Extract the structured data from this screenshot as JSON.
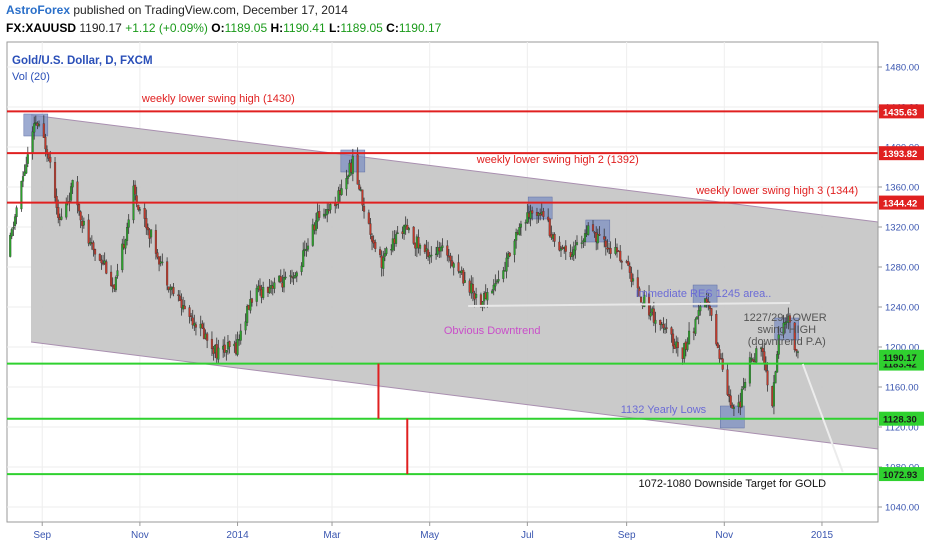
{
  "header": {
    "author": "AstroForex",
    "published": "published on TradingView.com, December 17, 2014",
    "symbol": "FX:XAUUSD",
    "last": "1190.17",
    "change": "+1.12 (+0.09%)",
    "o_label": "O:",
    "o_value": "1189.05",
    "h_label": "H:",
    "h_value": "1190.41",
    "l_label": "L:",
    "l_value": "1189.05",
    "c_label": "C:",
    "c_value": "1190.17"
  },
  "chart_data": {
    "type": "candlestick",
    "title": "Gold/U.S. Dollar, D, FXCM",
    "indicator": "Vol (20)",
    "ylim": [
      1025,
      1505
    ],
    "yticks": [
      1040,
      1080,
      1120,
      1160,
      1200,
      1240,
      1280,
      1320,
      1360,
      1400,
      1440,
      1480
    ],
    "ytick_labels": [
      "1040.00",
      "1080.00",
      "1120.00",
      "1160.00",
      "1200.00",
      "1240.00",
      "1280.00",
      "1320.00",
      "1360.00",
      "1400.00",
      "1440.00",
      "1480.00"
    ],
    "xticks": [
      {
        "label": "Sep",
        "date": "2013-09-01"
      },
      {
        "label": "Nov",
        "date": "2013-11-01"
      },
      {
        "label": "2014",
        "date": "2014-01-01"
      },
      {
        "label": "Mar",
        "date": "2014-03-01"
      },
      {
        "label": "May",
        "date": "2014-05-01"
      },
      {
        "label": "Jul",
        "date": "2014-07-01"
      },
      {
        "label": "Sep",
        "date": "2014-09-01"
      },
      {
        "label": "Nov",
        "date": "2014-11-01"
      },
      {
        "label": "2015",
        "date": "2015-01-01"
      }
    ],
    "xlim": [
      "2013-08-10",
      "2015-02-05"
    ],
    "price_path": [
      {
        "date": "2013-08-10",
        "price": 1290
      },
      {
        "date": "2013-08-20",
        "price": 1370
      },
      {
        "date": "2013-08-28",
        "price": 1425
      },
      {
        "date": "2013-09-05",
        "price": 1395
      },
      {
        "date": "2013-09-12",
        "price": 1325
      },
      {
        "date": "2013-09-20",
        "price": 1360
      },
      {
        "date": "2013-10-01",
        "price": 1300
      },
      {
        "date": "2013-10-10",
        "price": 1285
      },
      {
        "date": "2013-10-16",
        "price": 1255
      },
      {
        "date": "2013-10-28",
        "price": 1355
      },
      {
        "date": "2013-11-07",
        "price": 1315
      },
      {
        "date": "2013-11-20",
        "price": 1260
      },
      {
        "date": "2013-11-28",
        "price": 1240
      },
      {
        "date": "2013-12-06",
        "price": 1225
      },
      {
        "date": "2013-12-19",
        "price": 1195
      },
      {
        "date": "2013-12-31",
        "price": 1200
      },
      {
        "date": "2014-01-10",
        "price": 1250
      },
      {
        "date": "2014-01-24",
        "price": 1265
      },
      {
        "date": "2014-02-05",
        "price": 1265
      },
      {
        "date": "2014-02-20",
        "price": 1330
      },
      {
        "date": "2014-03-03",
        "price": 1345
      },
      {
        "date": "2014-03-14",
        "price": 1385
      },
      {
        "date": "2014-03-24",
        "price": 1320
      },
      {
        "date": "2014-04-01",
        "price": 1285
      },
      {
        "date": "2014-04-14",
        "price": 1320
      },
      {
        "date": "2014-04-28",
        "price": 1295
      },
      {
        "date": "2014-05-12",
        "price": 1295
      },
      {
        "date": "2014-05-26",
        "price": 1260
      },
      {
        "date": "2014-06-02",
        "price": 1245
      },
      {
        "date": "2014-06-16",
        "price": 1275
      },
      {
        "date": "2014-06-25",
        "price": 1320
      },
      {
        "date": "2014-07-10",
        "price": 1340
      },
      {
        "date": "2014-07-18",
        "price": 1305
      },
      {
        "date": "2014-07-28",
        "price": 1295
      },
      {
        "date": "2014-08-08",
        "price": 1315
      },
      {
        "date": "2014-08-20",
        "price": 1300
      },
      {
        "date": "2014-08-29",
        "price": 1290
      },
      {
        "date": "2014-09-10",
        "price": 1250
      },
      {
        "date": "2014-09-25",
        "price": 1215
      },
      {
        "date": "2014-10-06",
        "price": 1195
      },
      {
        "date": "2014-10-21",
        "price": 1248
      },
      {
        "date": "2014-11-05",
        "price": 1145
      },
      {
        "date": "2014-11-10",
        "price": 1140
      },
      {
        "date": "2014-11-18",
        "price": 1190
      },
      {
        "date": "2014-11-24",
        "price": 1198
      },
      {
        "date": "2014-12-01",
        "price": 1145
      },
      {
        "date": "2014-12-05",
        "price": 1208
      },
      {
        "date": "2014-12-09",
        "price": 1230
      },
      {
        "date": "2014-12-12",
        "price": 1222
      },
      {
        "date": "2014-12-17",
        "price": 1190
      }
    ],
    "levels": [
      {
        "value": 1435.63,
        "label": "1435.63",
        "color": "#e02020"
      },
      {
        "value": 1393.82,
        "label": "1393.82",
        "color": "#e02020"
      },
      {
        "value": 1344.42,
        "label": "1344.42",
        "color": "#e02020"
      },
      {
        "value": 1183.42,
        "label": "1183.42",
        "color": "#2fd12f"
      },
      {
        "value": 1128.3,
        "label": "1128.30",
        "color": "#2fd12f"
      },
      {
        "value": 1072.93,
        "label": "1072.93",
        "color": "#2fd12f"
      }
    ],
    "last_price": {
      "value": 1190.17,
      "label": "1190.17",
      "color": "#2fd12f"
    },
    "channel": {
      "upper": [
        {
          "date": "2013-08-25",
          "price": 1432
        },
        {
          "date": "2015-02-05",
          "price": 1325
        }
      ],
      "lower": [
        {
          "date": "2013-08-25",
          "price": 1205
        },
        {
          "date": "2015-02-05",
          "price": 1098
        }
      ]
    },
    "target_line": [
      {
        "date": "2014-12-20",
        "price": 1183
      },
      {
        "date": "2015-01-14",
        "price": 1075
      }
    ],
    "downtrend_line": [
      {
        "date": "2014-05-25",
        "price": 1241
      },
      {
        "date": "2014-12-12",
        "price": 1244
      }
    ],
    "measure_lines": [
      {
        "date": "2014-03-30",
        "from": 1183.42,
        "to": 1128.3
      },
      {
        "date": "2014-04-17",
        "from": 1128.3,
        "to": 1072.93
      }
    ],
    "swing_boxes": [
      {
        "date": "2013-08-28",
        "price": 1422
      },
      {
        "date": "2014-03-14",
        "price": 1386
      },
      {
        "date": "2014-07-09",
        "price": 1339
      },
      {
        "date": "2014-08-14",
        "price": 1316
      },
      {
        "date": "2014-10-20",
        "price": 1251
      },
      {
        "date": "2014-12-10",
        "price": 1218
      },
      {
        "date": "2014-11-06",
        "price": 1130
      }
    ],
    "annotations": [
      {
        "text": "weekly lower swing high (1430)",
        "date": "2013-12-20",
        "price": 1445,
        "color": "#e02020"
      },
      {
        "text": "weekly lower swing high 2 (1392)",
        "date": "2014-07-20",
        "price": 1384,
        "color": "#e02020"
      },
      {
        "text": "weekly lower swing high 3 (1344)",
        "date": "2014-12-04",
        "price": 1353,
        "color": "#e02020"
      },
      {
        "text": "Immediate RES 1245 area..",
        "date": "2014-10-19",
        "price": 1250,
        "color": "#6b6bd6"
      },
      {
        "text": "Obvious Downtrend",
        "date": "2014-06-09",
        "price": 1213,
        "color": "#c94fc9"
      },
      {
        "text": "1227/29 LOWER",
        "date": "2014-12-09",
        "price": 1226,
        "color": "#555555"
      },
      {
        "text": "swing HIGH",
        "date": "2014-12-10",
        "price": 1214,
        "color": "#555555"
      },
      {
        "text": "(downtrend P.A)",
        "date": "2014-12-10",
        "price": 1202,
        "color": "#555555"
      },
      {
        "text": "1132 Yearly Lows",
        "date": "2014-09-24",
        "price": 1134,
        "color": "#6b6bd6"
      },
      {
        "text": "1072-1080 Downside Target for GOLD",
        "date": "2014-11-06",
        "price": 1060,
        "color": "#111111"
      }
    ]
  }
}
